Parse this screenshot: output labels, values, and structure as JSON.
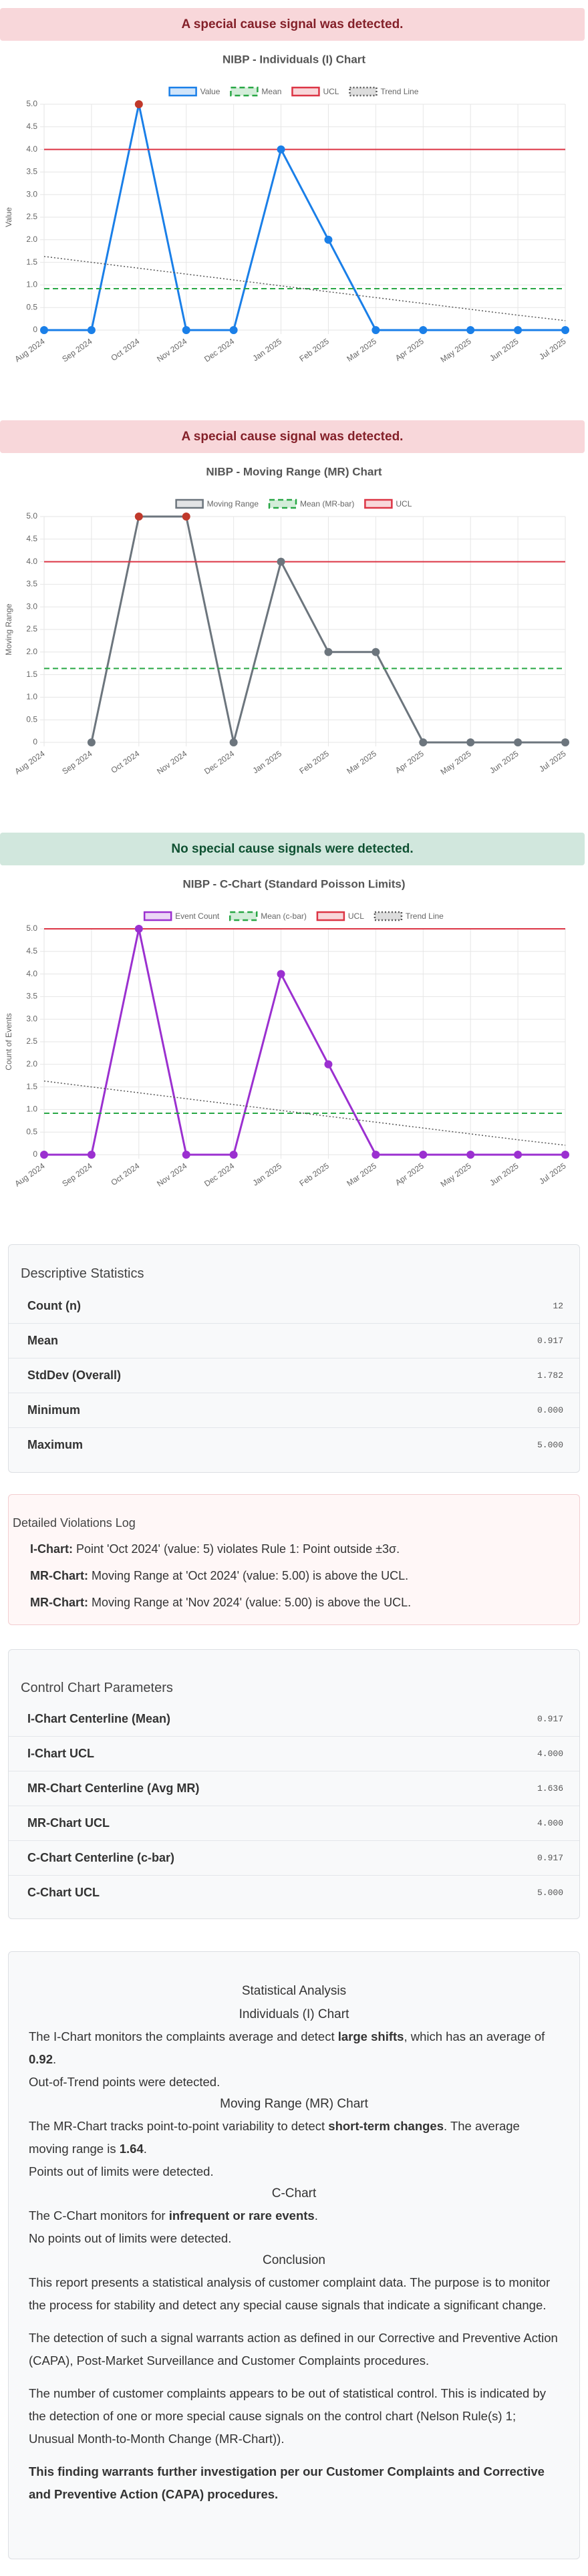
{
  "chart_data": [
    {
      "type": "line",
      "banner": "A special cause signal was detected.",
      "banner_color": "#f8d7da",
      "banner_text_color": "#842029",
      "title": "NIBP - Individuals (I) Chart",
      "y_label": "Value",
      "categories": [
        "Aug 2024",
        "Sep 2024",
        "Oct 2024",
        "Nov 2024",
        "Dec 2024",
        "Jan 2025",
        "Feb 2025",
        "Mar 2025",
        "Apr 2025",
        "May 2025",
        "Jun 2025",
        "Jul 2025"
      ],
      "ylim": [
        0,
        5
      ],
      "yticks": [
        0,
        0.5,
        {
          "value": 1,
          "label": "1.0"
        },
        1.5,
        {
          "value": 2,
          "label": "2.0"
        },
        2.5,
        {
          "value": 3,
          "label": "3.0"
        },
        3.5,
        {
          "value": 4,
          "label": "4.0"
        },
        4.5,
        {
          "value": 5,
          "label": "5.0"
        }
      ],
      "grid": true,
      "series": [
        {
          "name": "Value",
          "color": "#1a7fe8",
          "values": [
            0,
            0,
            5,
            0,
            0,
            4,
            2,
            0,
            0,
            0,
            0,
            0
          ],
          "point_colors": [
            "#1a7fe8",
            "#1a7fe8",
            "#c0392b",
            "#1a7fe8",
            "#1a7fe8",
            "#1a7fe8",
            "#1a7fe8",
            "#1a7fe8",
            "#1a7fe8",
            "#1a7fe8",
            "#1a7fe8",
            "#1a7fe8"
          ]
        },
        {
          "name": "Mean",
          "color": "#28a745",
          "style": "dashed",
          "value": 0.917
        },
        {
          "name": "UCL",
          "color": "#dc3545",
          "style": "solid",
          "value": 4
        },
        {
          "name": "Trend Line",
          "color": "#555555",
          "style": "dotted",
          "values": [
            1.63,
            1.5,
            1.37,
            1.24,
            1.11,
            0.98,
            0.85,
            0.72,
            0.59,
            0.46,
            0.33,
            0.21
          ]
        }
      ]
    },
    {
      "type": "line",
      "banner": "A special cause signal was detected.",
      "banner_color": "#f8d7da",
      "banner_text_color": "#842029",
      "title": "NIBP - Moving Range (MR) Chart",
      "y_label": "Moving Range",
      "categories": [
        "Aug 2024",
        "Sep 2024",
        "Oct 2024",
        "Nov 2024",
        "Dec 2024",
        "Jan 2025",
        "Feb 2025",
        "Mar 2025",
        "Apr 2025",
        "May 2025",
        "Jun 2025",
        "Jul 2025"
      ],
      "ylim": [
        0,
        5
      ],
      "yticks": [
        0,
        0.5,
        {
          "value": 1,
          "label": "1.0"
        },
        1.5,
        {
          "value": 2,
          "label": "2.0"
        },
        2.5,
        {
          "value": 3,
          "label": "3.0"
        },
        3.5,
        {
          "value": 4,
          "label": "4.0"
        },
        4.5,
        {
          "value": 5,
          "label": "5.0"
        }
      ],
      "grid": true,
      "series": [
        {
          "name": "Moving Range",
          "color": "#6c757d",
          "values": [
            null,
            0,
            5,
            5,
            0,
            4,
            2,
            2,
            0,
            0,
            0,
            0
          ],
          "point_colors": [
            null,
            "#6c757d",
            "#c0392b",
            "#c0392b",
            "#6c757d",
            "#6c757d",
            "#6c757d",
            "#6c757d",
            "#6c757d",
            "#6c757d",
            "#6c757d",
            "#6c757d"
          ]
        },
        {
          "name": "Mean (MR-bar)",
          "color": "#28a745",
          "style": "dashed",
          "value": 1.636
        },
        {
          "name": "UCL",
          "color": "#dc3545",
          "style": "solid",
          "value": 4
        }
      ]
    },
    {
      "type": "line",
      "banner": "No special cause signals were detected.",
      "banner_color": "#d1e7dd",
      "banner_text_color": "#0f5132",
      "title": "NIBP - C-Chart (Standard Poisson Limits)",
      "y_label": "Count of Events",
      "categories": [
        "Aug 2024",
        "Sep 2024",
        "Oct 2024",
        "Nov 2024",
        "Dec 2024",
        "Jan 2025",
        "Feb 2025",
        "Mar 2025",
        "Apr 2025",
        "May 2025",
        "Jun 2025",
        "Jul 2025"
      ],
      "ylim": [
        0,
        5
      ],
      "yticks": [
        0,
        0.5,
        {
          "value": 1,
          "label": "1.0"
        },
        1.5,
        {
          "value": 2,
          "label": "2.0"
        },
        2.5,
        {
          "value": 3,
          "label": "3.0"
        },
        3.5,
        {
          "value": 4,
          "label": "4.0"
        },
        4.5,
        {
          "value": 5,
          "label": "5.0"
        }
      ],
      "grid": true,
      "series": [
        {
          "name": "Event Count",
          "color": "#9b30d0",
          "values": [
            0,
            0,
            5,
            0,
            0,
            4,
            2,
            0,
            0,
            0,
            0,
            0
          ],
          "point_colors": [
            "#9b30d0",
            "#9b30d0",
            "#9b30d0",
            "#9b30d0",
            "#9b30d0",
            "#9b30d0",
            "#9b30d0",
            "#9b30d0",
            "#9b30d0",
            "#9b30d0",
            "#9b30d0",
            "#9b30d0"
          ]
        },
        {
          "name": "Mean (c-bar)",
          "color": "#28a745",
          "style": "dashed",
          "value": 0.917
        },
        {
          "name": "UCL",
          "color": "#dc3545",
          "style": "solid",
          "value": 5
        },
        {
          "name": "Trend Line",
          "color": "#555555",
          "style": "dotted",
          "values": [
            1.63,
            1.5,
            1.37,
            1.24,
            1.11,
            0.98,
            0.85,
            0.72,
            0.59,
            0.46,
            0.33,
            0.21
          ]
        }
      ]
    }
  ],
  "descriptive_statistics": {
    "title": "Descriptive Statistics",
    "rows": [
      [
        "Count (n)",
        "12"
      ],
      [
        "Mean",
        "0.917"
      ],
      [
        "StdDev (Overall)",
        "1.782"
      ],
      [
        "Minimum",
        "0.000"
      ],
      [
        "Maximum",
        "5.000"
      ]
    ]
  },
  "violations": {
    "title": "Detailed Violations Log",
    "items": [
      [
        "I-Chart:",
        " Point 'Oct 2024' (value: 5) violates Rule 1: Point outside ±3σ."
      ],
      [
        "MR-Chart:",
        " Moving Range at 'Oct 2024' (value: 5.00) is above the UCL."
      ],
      [
        "MR-Chart:",
        " Moving Range at 'Nov 2024' (value: 5.00) is above the UCL."
      ]
    ]
  },
  "parameters": {
    "title": "Control Chart Parameters",
    "rows": [
      [
        "I-Chart Centerline (Mean)",
        "0.917"
      ],
      [
        "I-Chart UCL",
        "4.000"
      ],
      [
        "MR-Chart Centerline (Avg MR)",
        "1.636"
      ],
      [
        "MR-Chart UCL",
        "4.000"
      ],
      [
        "C-Chart Centerline (c-bar)",
        "0.917"
      ],
      [
        "C-Chart UCL",
        "5.000"
      ]
    ]
  },
  "analysis": {
    "title": "Statistical Analysis",
    "sections": [
      {
        "heading": "Individuals (I) Chart",
        "paragraphs": [
          [
            "The I-Chart monitors the complaints average and detect ",
            {
              "b": "large shifts"
            },
            ", which has an average of ",
            {
              "b": "0.92"
            },
            "."
          ],
          [
            "Out-of-Trend points were detected."
          ]
        ]
      },
      {
        "heading": "Moving Range (MR) Chart",
        "paragraphs": [
          [
            "The MR-Chart tracks point-to-point variability to detect ",
            {
              "b": "short-term changes"
            },
            ". The average moving range is ",
            {
              "b": "1.64"
            },
            "."
          ],
          [
            "Points out of limits were detected."
          ]
        ]
      },
      {
        "heading": "C-Chart",
        "paragraphs": [
          [
            "The C-Chart monitors for ",
            {
              "b": "infrequent or rare events"
            },
            "."
          ],
          [
            "No points out of limits were detected."
          ]
        ]
      },
      {
        "heading": "Conclusion",
        "paragraphs": [
          [
            "This report presents a statistical analysis of customer complaint data. The purpose is to monitor the process for stability and detect any special cause signals that indicate a significant change."
          ],
          [
            "The detection of such a signal warrants action as defined in our Corrective and Preventive Action (CAPA), Post-Market Surveillance and Customer Complaints procedures."
          ],
          [
            "The number of customer complaints appears to be out of statistical control. This is indicated by the detection of one or more special cause signals on the control chart (Nelson Rule(s) 1; Unusual Month-to-Month Change (MR-Chart))."
          ],
          [
            {
              "b": "This finding warrants further investigation per our Customer Complaints and Corrective and Preventive Action (CAPA) procedures."
            }
          ]
        ]
      }
    ]
  }
}
